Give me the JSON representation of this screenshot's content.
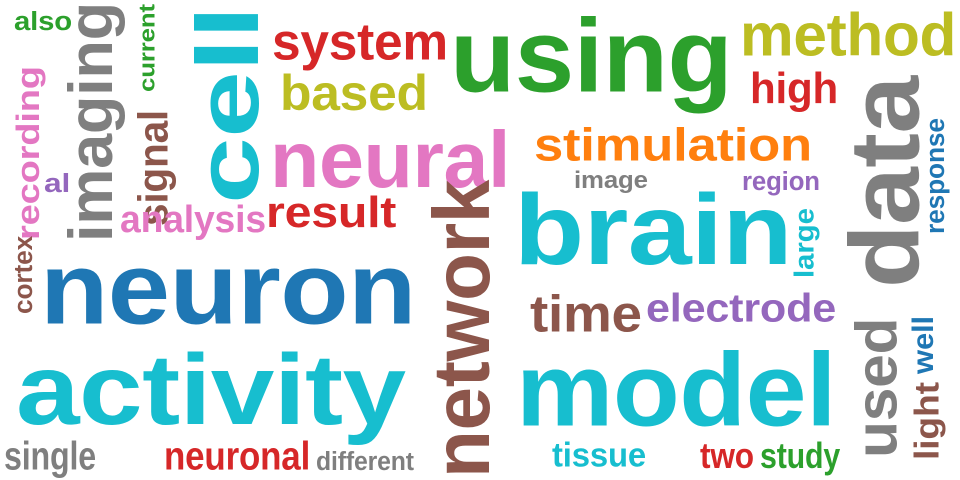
{
  "colors": {
    "background": "#ffffff",
    "blue": "#1f77b4",
    "orange": "#ff7f0e",
    "green": "#2ca02c",
    "red": "#d62728",
    "purple": "#9467bd",
    "brown": "#8c564b",
    "pink": "#e377c2",
    "gray": "#7f7f7f",
    "olive": "#bcbd22",
    "cyan": "#17becf"
  },
  "words": [
    {
      "key": "using",
      "text": "using",
      "color": "#2ca02c",
      "rotated": false
    },
    {
      "key": "method",
      "text": "method",
      "color": "#bcbd22",
      "rotated": false
    },
    {
      "key": "cell",
      "text": "cell",
      "color": "#17becf",
      "rotated": true
    },
    {
      "key": "system",
      "text": "system",
      "color": "#d62728",
      "rotated": false
    },
    {
      "key": "based",
      "text": "based",
      "color": "#bcbd22",
      "rotated": false
    },
    {
      "key": "high",
      "text": "high",
      "color": "#d62728",
      "rotated": false
    },
    {
      "key": "also",
      "text": "also",
      "color": "#2ca02c",
      "rotated": false
    },
    {
      "key": "current",
      "text": "current",
      "color": "#2ca02c",
      "rotated": true
    },
    {
      "key": "imaging",
      "text": "imaging",
      "color": "#7f7f7f",
      "rotated": true
    },
    {
      "key": "recording",
      "text": "recording",
      "color": "#e377c2",
      "rotated": true
    },
    {
      "key": "cortex",
      "text": "cortex",
      "color": "#8c564b",
      "rotated": true
    },
    {
      "key": "al",
      "text": "al",
      "color": "#9467bd",
      "rotated": false
    },
    {
      "key": "signal",
      "text": "signal",
      "color": "#8c564b",
      "rotated": true
    },
    {
      "key": "neural",
      "text": "neural",
      "color": "#e377c2",
      "rotated": false
    },
    {
      "key": "stimulation",
      "text": "stimulation",
      "color": "#ff7f0e",
      "rotated": false
    },
    {
      "key": "data",
      "text": "data",
      "color": "#7f7f7f",
      "rotated": true
    },
    {
      "key": "response",
      "text": "response",
      "color": "#1f77b4",
      "rotated": true
    },
    {
      "key": "image",
      "text": "image",
      "color": "#7f7f7f",
      "rotated": false
    },
    {
      "key": "region",
      "text": "region",
      "color": "#9467bd",
      "rotated": false
    },
    {
      "key": "analysis",
      "text": "analysis",
      "color": "#e377c2",
      "rotated": false
    },
    {
      "key": "result",
      "text": "result",
      "color": "#d62728",
      "rotated": false
    },
    {
      "key": "network",
      "text": "network",
      "color": "#8c564b",
      "rotated": true
    },
    {
      "key": "brain",
      "text": "brain",
      "color": "#17becf",
      "rotated": false
    },
    {
      "key": "large",
      "text": "large",
      "color": "#17becf",
      "rotated": true
    },
    {
      "key": "neuron",
      "text": "neuron",
      "color": "#1f77b4",
      "rotated": false
    },
    {
      "key": "time",
      "text": "time",
      "color": "#8c564b",
      "rotated": false
    },
    {
      "key": "electrode",
      "text": "electrode",
      "color": "#9467bd",
      "rotated": false
    },
    {
      "key": "activity",
      "text": "activity",
      "color": "#17becf",
      "rotated": false
    },
    {
      "key": "model",
      "text": "model",
      "color": "#17becf",
      "rotated": false
    },
    {
      "key": "used",
      "text": "used",
      "color": "#7f7f7f",
      "rotated": true
    },
    {
      "key": "well",
      "text": "well",
      "color": "#1f77b4",
      "rotated": true
    },
    {
      "key": "light",
      "text": "light",
      "color": "#8c564b",
      "rotated": true
    },
    {
      "key": "single",
      "text": "single",
      "color": "#7f7f7f",
      "rotated": false
    },
    {
      "key": "neuronal",
      "text": "neuronal",
      "color": "#d62728",
      "rotated": false
    },
    {
      "key": "different",
      "text": "different",
      "color": "#7f7f7f",
      "rotated": false
    },
    {
      "key": "tissue",
      "text": "tissue",
      "color": "#17becf",
      "rotated": false
    },
    {
      "key": "two",
      "text": "two",
      "color": "#d62728",
      "rotated": false
    },
    {
      "key": "study",
      "text": "study",
      "color": "#2ca02c",
      "rotated": false
    }
  ]
}
